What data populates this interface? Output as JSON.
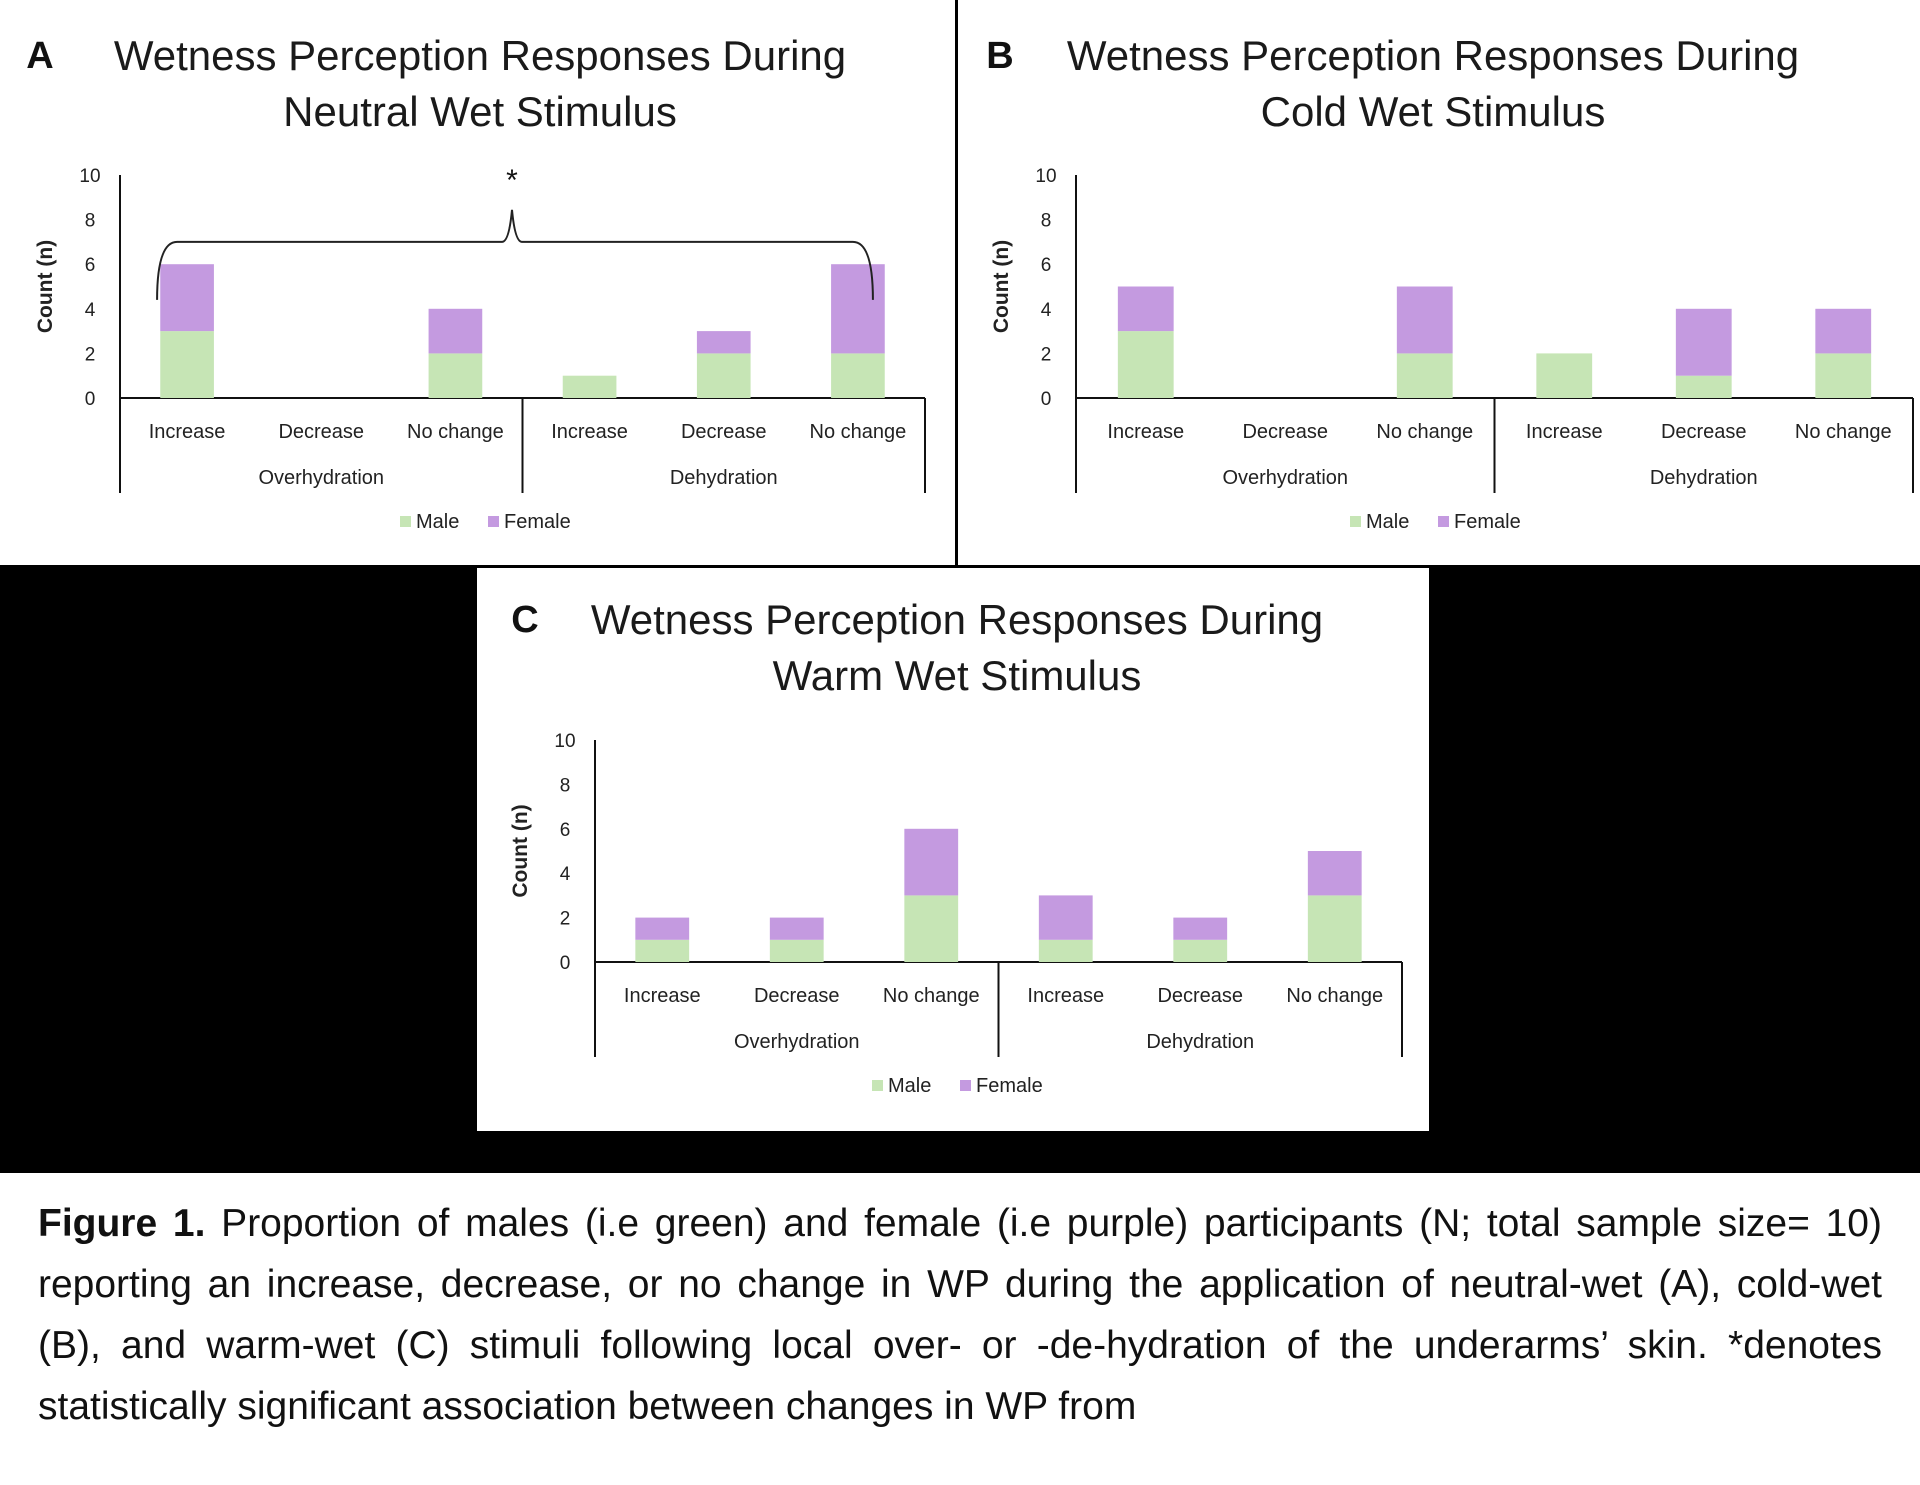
{
  "legend": {
    "male": "Male",
    "female": "Female"
  },
  "colors": {
    "male": "#c6e5b5",
    "female": "#c49ae0",
    "axis": "#111111",
    "text": "#222222"
  },
  "chart_data": [
    {
      "letter": "A",
      "type": "bar",
      "stacked": true,
      "title": [
        "Wetness Perception Responses During",
        "Neutral Wet Stimulus"
      ],
      "ylabel": "Count (n)",
      "ylim": [
        0,
        10
      ],
      "yticks": [
        "0",
        "2",
        "4",
        "6",
        "8",
        "10"
      ],
      "groups": [
        "Overhydration",
        "Dehydration"
      ],
      "categories": [
        "Increase",
        "Decrease",
        "No change",
        "Increase",
        "Decrease",
        "No change"
      ],
      "series": [
        {
          "name": "Male",
          "values": [
            3,
            0,
            2,
            1,
            2,
            2
          ]
        },
        {
          "name": "Female",
          "values": [
            3,
            0,
            2,
            0,
            1,
            4
          ]
        }
      ],
      "significance": {
        "marker": "*",
        "bracket_level": 7
      }
    },
    {
      "letter": "B",
      "type": "bar",
      "stacked": true,
      "title": [
        "Wetness Perception Responses During",
        "Cold Wet Stimulus"
      ],
      "ylabel": "Count (n)",
      "ylim": [
        0,
        10
      ],
      "yticks": [
        "0",
        "2",
        "4",
        "6",
        "8",
        "10"
      ],
      "groups": [
        "Overhydration",
        "Dehydration"
      ],
      "categories": [
        "Increase",
        "Decrease",
        "No change",
        "Increase",
        "Decrease",
        "No change"
      ],
      "series": [
        {
          "name": "Male",
          "values": [
            3,
            0,
            2,
            2,
            1,
            2
          ]
        },
        {
          "name": "Female",
          "values": [
            2,
            0,
            3,
            0,
            3,
            2
          ]
        }
      ]
    },
    {
      "letter": "C",
      "type": "bar",
      "stacked": true,
      "title": [
        "Wetness Perception Responses During",
        "Warm Wet Stimulus"
      ],
      "ylabel": "Count (n)",
      "ylim": [
        0,
        10
      ],
      "yticks": [
        "0",
        "2",
        "4",
        "6",
        "8",
        "10"
      ],
      "groups": [
        "Overhydration",
        "Dehydration"
      ],
      "categories": [
        "Increase",
        "Decrease",
        "No change",
        "Increase",
        "Decrease",
        "No change"
      ],
      "series": [
        {
          "name": "Male",
          "values": [
            1,
            1,
            3,
            1,
            1,
            3
          ]
        },
        {
          "name": "Female",
          "values": [
            1,
            1,
            3,
            2,
            1,
            2
          ]
        }
      ]
    }
  ],
  "caption": {
    "label": "Figure 1.",
    "text": " Proportion of males (i.e green) and female (i.e purple) participants (N; total sample size= 10) reporting an increase, decrease, or no change in WP during the application of neutral-wet (A), cold-wet (B), and warm-wet (C) stimuli following local over- or -de-hydration of the underarms’ skin.  *denotes statistically significant association between changes in WP from"
  }
}
